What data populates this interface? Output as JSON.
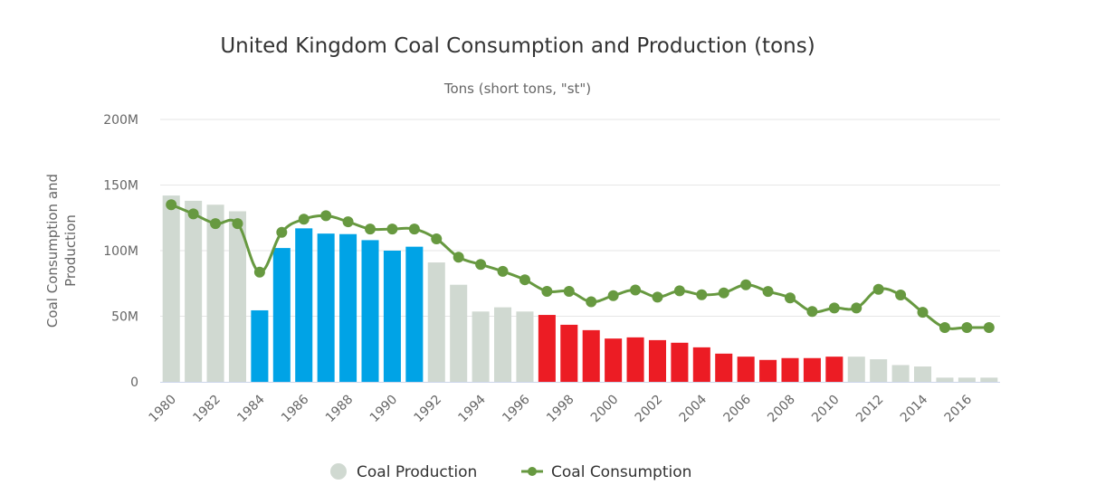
{
  "chart_data": {
    "type": "bar",
    "title": "United Kingdom Coal Consumption and Production (tons)",
    "subtitle": "Tons (short tons, \"st\")",
    "xlabel": "",
    "ylabel_lines": [
      "Coal Consumption and",
      "Production"
    ],
    "ylim": [
      0,
      200000000
    ],
    "yticks": [
      {
        "value": 0,
        "label": "0"
      },
      {
        "value": 50000000,
        "label": "50M"
      },
      {
        "value": 100000000,
        "label": "100M"
      },
      {
        "value": 150000000,
        "label": "150M"
      },
      {
        "value": 200000000,
        "label": "200M"
      }
    ],
    "grid": true,
    "legend_position": "bottom",
    "categories": [
      "1980",
      "1981",
      "1982",
      "1983",
      "1984",
      "1985",
      "1986",
      "1987",
      "1988",
      "1989",
      "1990",
      "1991",
      "1992",
      "1993",
      "1994",
      "1995",
      "1996",
      "1997",
      "1998",
      "1999",
      "2000",
      "2001",
      "2002",
      "2003",
      "2004",
      "2005",
      "2006",
      "2007",
      "2008",
      "2009",
      "2010",
      "2011",
      "2012",
      "2013",
      "2014",
      "2015",
      "2016",
      "2017"
    ],
    "xtick_labels": [
      "1980",
      "1982",
      "1984",
      "1986",
      "1988",
      "1990",
      "1992",
      "1994",
      "1996",
      "1998",
      "2000",
      "2002",
      "2004",
      "2006",
      "2008",
      "2010",
      "2012",
      "2014",
      "2016"
    ],
    "series": [
      {
        "name": "Coal Production",
        "kind": "bar",
        "color": "#d0d9d1",
        "values": [
          142,
          138,
          135,
          130,
          54.5,
          102,
          117,
          113,
          112.6,
          108,
          100,
          103,
          91,
          74,
          53.6,
          56.8,
          53.6,
          51,
          43.5,
          39.4,
          33,
          33.9,
          31.8,
          29.8,
          26.3,
          21.5,
          19.2,
          16.7,
          18.1,
          18.1,
          19.2,
          19.2,
          17.2,
          12.8,
          11.7,
          3.2,
          3.2,
          3.2
        ],
        "value_unit": "M",
        "highlight_ranges": [
          {
            "from": "1984",
            "to": "1991",
            "color": "#00a3e6"
          },
          {
            "from": "1997",
            "to": "2010",
            "color": "#ec1c24"
          }
        ]
      },
      {
        "name": "Coal Consumption",
        "kind": "line",
        "color": "#679940",
        "values": [
          135,
          128,
          120.6,
          120.6,
          83.6,
          114,
          124,
          126.6,
          122,
          116.5,
          116.5,
          116.5,
          109,
          95,
          89.5,
          84.2,
          77.8,
          69,
          69,
          61,
          65.7,
          70,
          64.6,
          69.4,
          66.4,
          67.8,
          74,
          68.9,
          64,
          53.6,
          56.3,
          56.3,
          70.5,
          66.2,
          53,
          41.4,
          41.4,
          41.4
        ],
        "value_unit": "M"
      }
    ]
  }
}
